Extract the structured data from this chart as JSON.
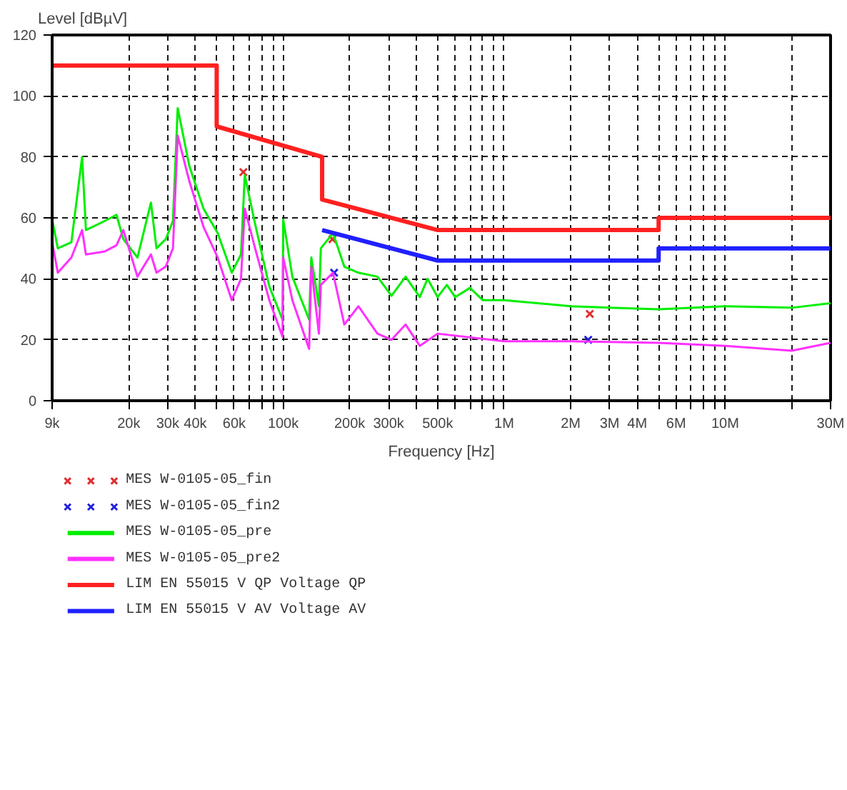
{
  "chart_data": {
    "type": "line",
    "ylabel": "Level [dBµV]",
    "xlabel": "Frequency [Hz]",
    "log": "x",
    "xlim": [
      9000,
      30000000
    ],
    "ylim": [
      0,
      120
    ],
    "xticks": [
      {
        "value": 9000,
        "label": "9k"
      },
      {
        "value": 20000,
        "label": "20k"
      },
      {
        "value": 30000,
        "label": "30k"
      },
      {
        "value": 40000,
        "label": "40k"
      },
      {
        "value": 50000,
        "label": null
      },
      {
        "value": 60000,
        "label": "60k"
      },
      {
        "value": 70000,
        "label": null
      },
      {
        "value": 80000,
        "label": null
      },
      {
        "value": 90000,
        "label": null
      },
      {
        "value": 100000,
        "label": "100k"
      },
      {
        "value": 200000,
        "label": "200k"
      },
      {
        "value": 300000,
        "label": "300k"
      },
      {
        "value": 400000,
        "label": null
      },
      {
        "value": 500000,
        "label": "500k"
      },
      {
        "value": 600000,
        "label": null
      },
      {
        "value": 700000,
        "label": null
      },
      {
        "value": 800000,
        "label": null
      },
      {
        "value": 900000,
        "label": null
      },
      {
        "value": 1000000,
        "label": "1M"
      },
      {
        "value": 2000000,
        "label": "2M"
      },
      {
        "value": 3000000,
        "label": "3M"
      },
      {
        "value": 4000000,
        "label": "4M"
      },
      {
        "value": 5000000,
        "label": null
      },
      {
        "value": 6000000,
        "label": "6M"
      },
      {
        "value": 7000000,
        "label": null
      },
      {
        "value": 8000000,
        "label": null
      },
      {
        "value": 9000000,
        "label": null
      },
      {
        "value": 10000000,
        "label": "10M"
      },
      {
        "value": 20000000,
        "label": null
      },
      {
        "value": 30000000,
        "label": "30M"
      }
    ],
    "yticks": [
      0,
      20,
      40,
      60,
      80,
      100,
      120
    ],
    "grid": true,
    "legend": "bottom",
    "series": [
      {
        "name": "MES  W-0105-05_fin",
        "type": "scatter",
        "marker": "cross",
        "color": "#e03030",
        "x": [
          66000,
          167000,
          2440000
        ],
        "values": [
          75,
          53,
          28.5
        ]
      },
      {
        "name": "MES  W-0105-05_fin2",
        "type": "scatter",
        "marker": "cross",
        "color": "#2020e0",
        "x": [
          170000,
          2400000
        ],
        "values": [
          42,
          20
        ]
      },
      {
        "name": "MES  W-0105-05_pre",
        "color": "#00ee00",
        "x": [
          9000,
          9550,
          11000,
          12300,
          12800,
          15600,
          17600,
          18900,
          21900,
          25200,
          26700,
          29400,
          31700,
          33300,
          37600,
          43600,
          50500,
          58500,
          64400,
          67000,
          74600,
          86500,
          99300,
          100000,
          110000,
          131000,
          134000,
          145000,
          148000,
          168000,
          189000,
          219000,
          267000,
          309000,
          358000,
          415000,
          450000,
          500000,
          550000,
          600000,
          700000,
          800000,
          1000000,
          2000000,
          3000000,
          5000000,
          10000000,
          20000000,
          30000000
        ],
        "values": [
          59.5,
          50,
          52,
          80,
          56,
          59,
          61,
          53,
          47,
          65,
          50,
          53,
          59,
          96,
          77,
          63,
          55,
          42,
          48,
          74,
          58,
          37.5,
          26.6,
          59.5,
          40.7,
          26.6,
          47,
          31,
          50,
          55,
          44,
          42,
          40.7,
          34.4,
          40.7,
          34,
          40,
          34,
          38,
          34,
          37,
          33,
          33,
          31,
          30.5,
          30,
          31,
          30.5,
          32
        ]
      },
      {
        "name": "MES  W-0105-05_pre2",
        "color": "#ff30ff",
        "x": [
          9000,
          9550,
          11000,
          12300,
          12800,
          15600,
          17600,
          18900,
          21900,
          25200,
          26700,
          29400,
          31700,
          33300,
          37600,
          43600,
          50500,
          58500,
          64400,
          67000,
          74600,
          86500,
          99300,
          100000,
          110000,
          131000,
          134000,
          145000,
          148000,
          168000,
          189000,
          219000,
          267000,
          309000,
          358000,
          415000,
          500000,
          1000000,
          2000000,
          5000000,
          10000000,
          20000000,
          30000000
        ],
        "values": [
          52,
          42,
          47,
          56,
          48,
          49,
          51,
          56,
          40.7,
          48,
          42,
          44,
          50,
          87,
          72,
          57,
          47,
          33,
          40,
          63,
          50,
          33,
          21,
          47,
          33,
          17,
          44,
          22,
          38,
          42,
          25,
          31,
          22,
          20,
          25,
          18,
          22,
          19.5,
          19.5,
          19,
          18,
          16.4,
          19
        ]
      },
      {
        "name": "LIM  EN 55015 V QP        Voltage QP",
        "color": "#ff2020",
        "x": [
          9000,
          50000,
          50000,
          150000,
          150000,
          500000,
          5000000,
          5000000,
          30000000
        ],
        "values": [
          110,
          110,
          90,
          80,
          66,
          56,
          56,
          60,
          60
        ]
      },
      {
        "name": "LIM  EN 55015 V AV        Voltage AV",
        "color": "#2020ff",
        "x": [
          150000,
          500000,
          5000000,
          5000000,
          30000000
        ],
        "values": [
          56,
          46,
          46,
          50,
          50
        ]
      }
    ]
  }
}
